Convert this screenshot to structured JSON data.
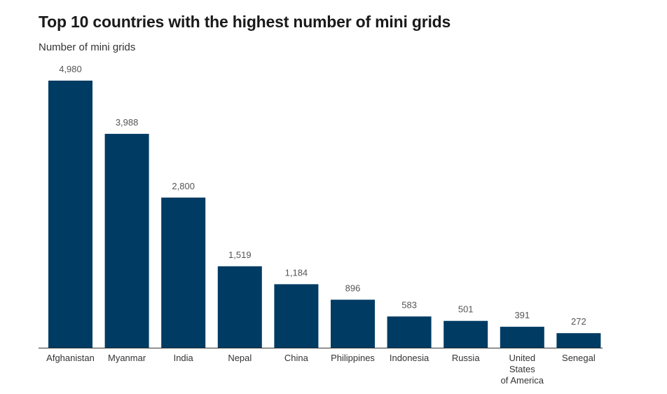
{
  "chart_data": {
    "type": "bar",
    "title": "Top 10 countries with the highest number of mini grids",
    "ylabel": "Number of mini grids",
    "xlabel": "",
    "categories": [
      "Afghanistan",
      "Myanmar",
      "India",
      "Nepal",
      "China",
      "Philippines",
      "Indonesia",
      "Russia",
      "United States of America",
      "Senegal"
    ],
    "category_lines": [
      [
        "Afghanistan"
      ],
      [
        "Myanmar"
      ],
      [
        "India"
      ],
      [
        "Nepal"
      ],
      [
        "China"
      ],
      [
        "Philippines"
      ],
      [
        "Indonesia"
      ],
      [
        "Russia"
      ],
      [
        "United",
        "States",
        "of America"
      ],
      [
        "Senegal"
      ]
    ],
    "values": [
      4980,
      3988,
      2800,
      1519,
      1184,
      896,
      583,
      501,
      391,
      272
    ],
    "value_labels": [
      "4,980",
      "3,988",
      "2,800",
      "1,519",
      "1,184",
      "896",
      "583",
      "501",
      "391",
      "272"
    ],
    "ylim": [
      0,
      4980
    ],
    "grid": false,
    "bar_color": "#003b63",
    "axis_color": "#333333"
  }
}
